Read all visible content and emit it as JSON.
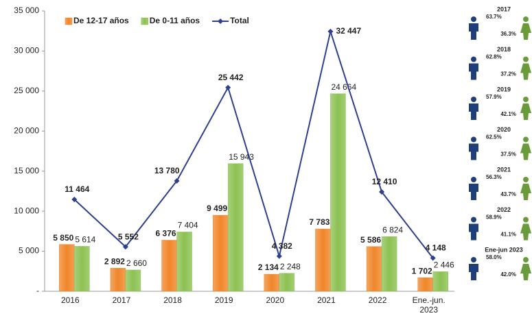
{
  "chart_data": {
    "type": "bar_line",
    "categories": [
      "2016",
      "2017",
      "2018",
      "2019",
      "2020",
      "2021",
      "2022",
      "Ene.-jun. 2023"
    ],
    "series": [
      {
        "name": "De 12-17 años",
        "color": "#f0862a",
        "type": "bar",
        "values": [
          5850,
          2892,
          6376,
          9499,
          2134,
          7783,
          5586,
          1702
        ],
        "value_labels": [
          "5 850",
          "2 892",
          "6 376",
          "9 499",
          "2 134",
          "7 783",
          "5 586",
          "1 702"
        ]
      },
      {
        "name": "De 0-11 años",
        "color": "#8cc152",
        "type": "bar",
        "values": [
          5614,
          2660,
          7404,
          15943,
          2248,
          24664,
          6824,
          2446
        ],
        "value_labels": [
          "5 614",
          "2 660",
          "7 404",
          "15 943",
          "2 248",
          "24 664",
          "6 824",
          "2 446"
        ]
      },
      {
        "name": "Total",
        "color": "#2e3f8f",
        "type": "line",
        "values": [
          11464,
          5552,
          13780,
          25442,
          4382,
          32447,
          12410,
          4148
        ],
        "value_labels": [
          "11 464",
          "5 552",
          "13 780",
          "25 442",
          "4 382",
          "32 447",
          "12 410",
          "4 148"
        ]
      }
    ],
    "ylim": [
      0,
      35000
    ],
    "yticks": [
      {
        "value": 0,
        "label": "-"
      },
      {
        "value": 5000,
        "label": "5 000"
      },
      {
        "value": 10000,
        "label": "10 000"
      },
      {
        "value": 15000,
        "label": "15 000"
      },
      {
        "value": 20000,
        "label": "20 000"
      },
      {
        "value": 25000,
        "label": "25 000"
      },
      {
        "value": 30000,
        "label": "30 000"
      },
      {
        "value": 35000,
        "label": "35 000"
      }
    ],
    "legend": "top"
  },
  "panel": [
    {
      "period": "2017",
      "male": "63.7%",
      "female": "36.3%"
    },
    {
      "period": "2018",
      "male": "62.8%",
      "female": "37.2%"
    },
    {
      "period": "2019",
      "male": "57.9%",
      "female": "42.1%"
    },
    {
      "period": "2020",
      "male": "62.5%",
      "female": "37.5%"
    },
    {
      "period": "2021",
      "male": "56.3%",
      "female": "43.7%"
    },
    {
      "period": "2022",
      "male": "58.9%",
      "female": "41.1%"
    },
    {
      "period": "Ene-jun 2023",
      "male": "58.0%",
      "female": "42.0%"
    }
  ]
}
